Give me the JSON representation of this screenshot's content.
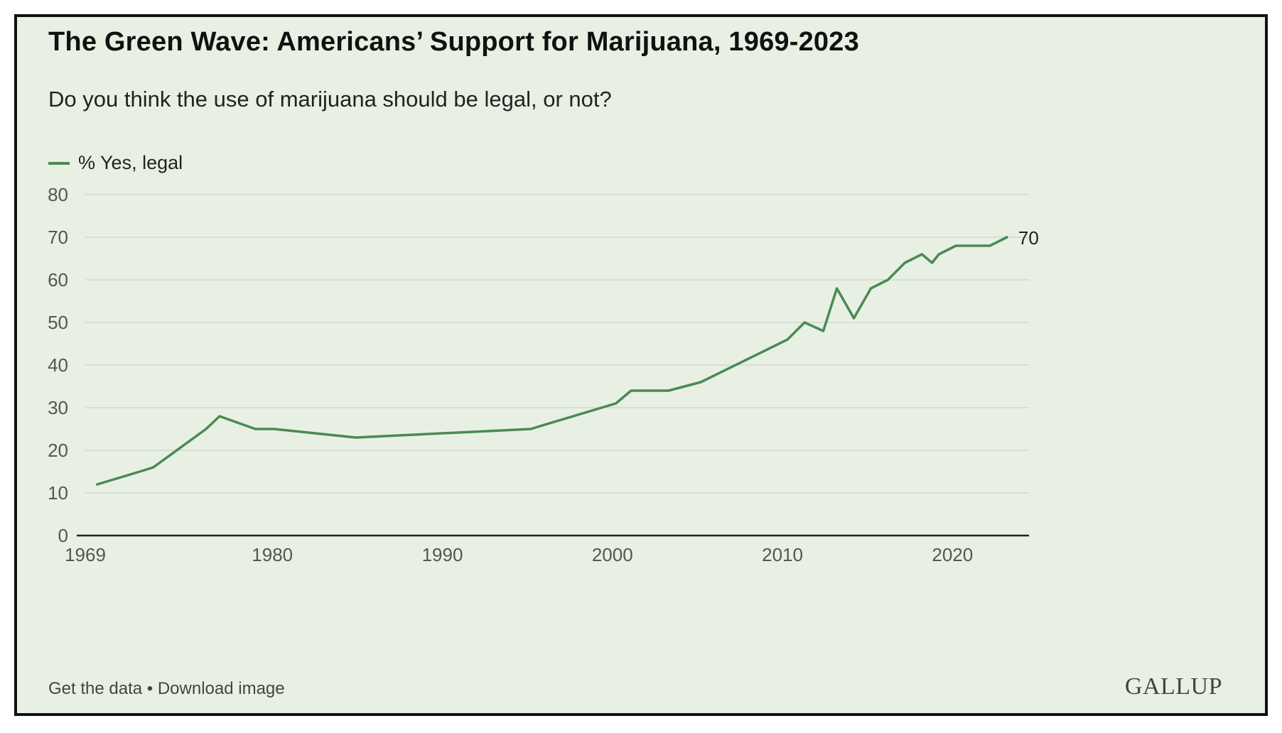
{
  "title": "The Green Wave: Americans’ Support for Marijuana, 1969-2023",
  "subtitle": "Do you think the use of marijuana should be legal, or not?",
  "legend": {
    "label": "% Yes, legal"
  },
  "colors": {
    "line": "#4a8a52",
    "background": "#e8f0e3",
    "grid": "#cfd9cb",
    "axis": "#222222"
  },
  "footer": {
    "get_data": "Get the data",
    "separator": " • ",
    "download": "Download image",
    "brand": "GALLUP"
  },
  "chart_data": {
    "type": "line",
    "title": "The Green Wave: Americans’ Support for Marijuana, 1969-2023",
    "subtitle": "Do you think the use of marijuana should be legal, or not?",
    "xlabel": "",
    "ylabel": "",
    "xlim": [
      1969,
      2024.5
    ],
    "ylim": [
      0,
      80
    ],
    "x_ticks": [
      1969,
      1980,
      1990,
      2000,
      2010,
      2020
    ],
    "y_ticks": [
      0,
      10,
      20,
      30,
      40,
      50,
      60,
      70,
      80
    ],
    "grid": true,
    "legend_position": "top-left",
    "end_label": "70",
    "series": [
      {
        "name": "% Yes, legal",
        "x": [
          1969.7,
          1972.2,
          1973,
          1976.1,
          1976.9,
          1979,
          1980.1,
          1984.9,
          1995.2,
          1995.6,
          2000.2,
          2001.1,
          2003.3,
          2005.2,
          2010.3,
          2011.3,
          2012.4,
          2013.2,
          2014.2,
          2015.2,
          2016.2,
          2017.2,
          2018.2,
          2018.8,
          2019.2,
          2020.2,
          2022.2,
          2023.2
        ],
        "values": [
          12,
          15,
          16,
          25,
          28,
          25,
          25,
          23,
          25,
          25.5,
          31,
          34,
          34,
          36,
          46,
          50,
          48,
          58,
          51,
          58,
          60,
          64,
          66,
          64,
          66,
          68,
          68,
          70
        ]
      }
    ]
  }
}
